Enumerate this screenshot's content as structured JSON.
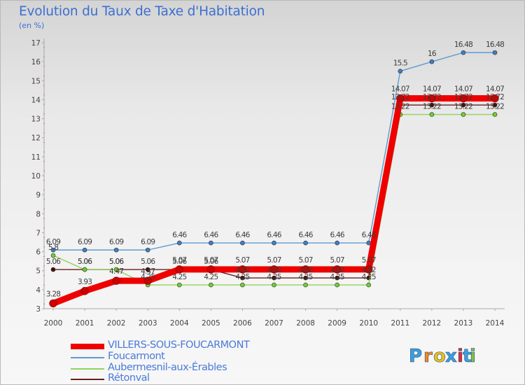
{
  "chart_data": {
    "type": "line",
    "title": "Evolution du Taux de Taxe d'Habitation",
    "subtitle": "(en %)",
    "xlabel": "",
    "ylabel": "",
    "x": [
      2000,
      2001,
      2002,
      2003,
      2004,
      2005,
      2006,
      2007,
      2008,
      2009,
      2010,
      2011,
      2012,
      2013,
      2014
    ],
    "x_tick_labels": [
      "2000",
      "2001",
      "2002",
      "2003",
      "2004",
      "2005",
      "2006",
      "2007",
      "2008",
      "2009",
      "2010",
      "2011",
      "2012",
      "2013",
      "2014"
    ],
    "ylim": [
      3,
      17
    ],
    "y_ticks": [
      3,
      4,
      5,
      6,
      7,
      8,
      9,
      10,
      11,
      12,
      13,
      14,
      15,
      16,
      17
    ],
    "y_tick_labels": [
      "3",
      "4",
      "5",
      "6",
      "7",
      "8",
      "9",
      "10",
      "11",
      "12",
      "13",
      "14",
      "15",
      "16",
      "17"
    ],
    "grid": false,
    "legend_position": "bottom-left",
    "series": [
      {
        "name": "Rétonval",
        "color": "#6b1e1e",
        "marker": "#4a0d0d",
        "values": [
          5.06,
          5.06,
          5.06,
          5.06,
          5.06,
          5.06,
          4.62,
          4.62,
          4.62,
          4.62,
          4.62,
          13.72,
          13.72,
          13.72,
          13.72
        ],
        "labels": [
          "5.06",
          "5.06",
          "5.06",
          "5.06",
          "5.06",
          "5.06",
          "4.62",
          "4.62",
          "4.62",
          "4.62",
          "4.62",
          "13.72",
          "13.72",
          "13.72",
          "13.72"
        ]
      },
      {
        "name": "Aubermesnil-aux-Érables",
        "color": "#8fd45a",
        "marker": "#6fcf2f",
        "values": [
          5.8,
          5.06,
          5.06,
          4.25,
          4.25,
          4.25,
          4.25,
          4.25,
          4.25,
          4.25,
          4.25,
          13.22,
          13.22,
          13.22,
          13.22
        ],
        "labels": [
          "5.8",
          "5.06",
          "5.06",
          "4.25",
          "4.25",
          "4.25",
          "4.25",
          "4.25",
          "4.25",
          "4.25",
          "4.25",
          "13.22",
          "13.22",
          "13.22",
          "13.22"
        ]
      },
      {
        "name": "Foucarmont",
        "color": "#5f9ad2",
        "marker": "#3f7fc0",
        "values": [
          6.09,
          6.09,
          6.09,
          6.09,
          6.46,
          6.46,
          6.46,
          6.46,
          6.46,
          6.46,
          6.46,
          15.5,
          16,
          16.48,
          16.48
        ],
        "labels": [
          "6.09",
          "6.09",
          "6.09",
          "6.09",
          "6.46",
          "6.46",
          "6.46",
          "6.46",
          "6.46",
          "6.46",
          "6.46",
          "15.5",
          "16",
          "16.48",
          "16.48"
        ]
      },
      {
        "name": "VILLERS-SOUS-FOUCARMONT",
        "color": "#ee0000",
        "marker": "#cc0000",
        "values": [
          3.28,
          3.93,
          4.47,
          4.47,
          5.07,
          5.07,
          5.07,
          5.07,
          5.07,
          5.07,
          5.07,
          14.07,
          14.07,
          14.07,
          14.07
        ],
        "labels": [
          "3.28",
          "3.93",
          "4.47",
          "4.47",
          "5.07",
          "5.07",
          "5.07",
          "5.07",
          "5.07",
          "5.07",
          "5.07",
          "14.07",
          "14.07",
          "14.07",
          "14.07"
        ]
      }
    ]
  },
  "legend": {
    "items": [
      {
        "name": "VILLERS-SOUS-FOUCARMONT",
        "color": "#ee0000"
      },
      {
        "name": "Foucarmont",
        "color": "#5f9ad2"
      },
      {
        "name": "Aubermesnil-aux-Érables",
        "color": "#8fd45a"
      },
      {
        "name": "Rétonval",
        "color": "#6b1e1e"
      }
    ]
  },
  "logo": {
    "text": "Proxiti",
    "letters": [
      "P",
      "r",
      "o",
      "x",
      "i",
      "t",
      "i"
    ],
    "letter_colors": [
      "#3aa0d8",
      "#f08a1c",
      "#e7c21a",
      "#3aa0d8",
      "#e02f2f",
      "#3aa0d8",
      "#7cc242"
    ]
  }
}
